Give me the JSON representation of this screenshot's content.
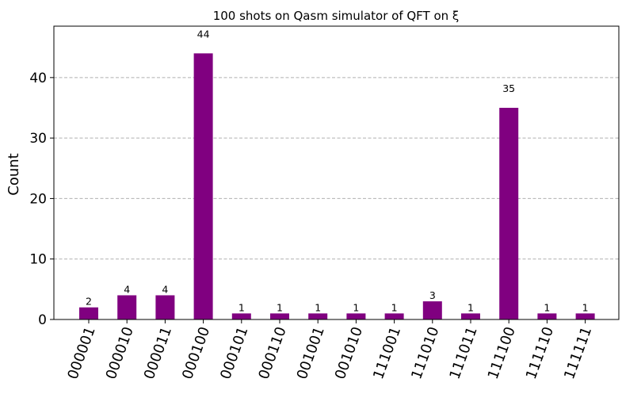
{
  "chart_data": {
    "type": "bar",
    "title": "100 shots on Qasm simulator of QFT on ξ",
    "xlabel": "",
    "ylabel": "Count",
    "categories": [
      "000001",
      "000010",
      "000011",
      "000100",
      "000101",
      "000110",
      "001001",
      "001010",
      "111001",
      "111010",
      "111011",
      "111100",
      "111110",
      "111111"
    ],
    "values": [
      2,
      4,
      4,
      44,
      1,
      1,
      1,
      1,
      1,
      3,
      1,
      35,
      1,
      1
    ],
    "data_labels": [
      "2",
      "4",
      "4",
      "44",
      "1",
      "1",
      "1",
      "1",
      "1",
      "3",
      "1",
      "35",
      "1",
      "1"
    ],
    "ylim": [
      0,
      48.5
    ],
    "yticks": [
      0,
      10,
      20,
      30,
      40
    ],
    "ytick_labels": [
      "0",
      "10",
      "20",
      "30",
      "40"
    ],
    "grid": "y dashed",
    "bar_color": "#800080",
    "grid_color": "#b0b0b0"
  }
}
